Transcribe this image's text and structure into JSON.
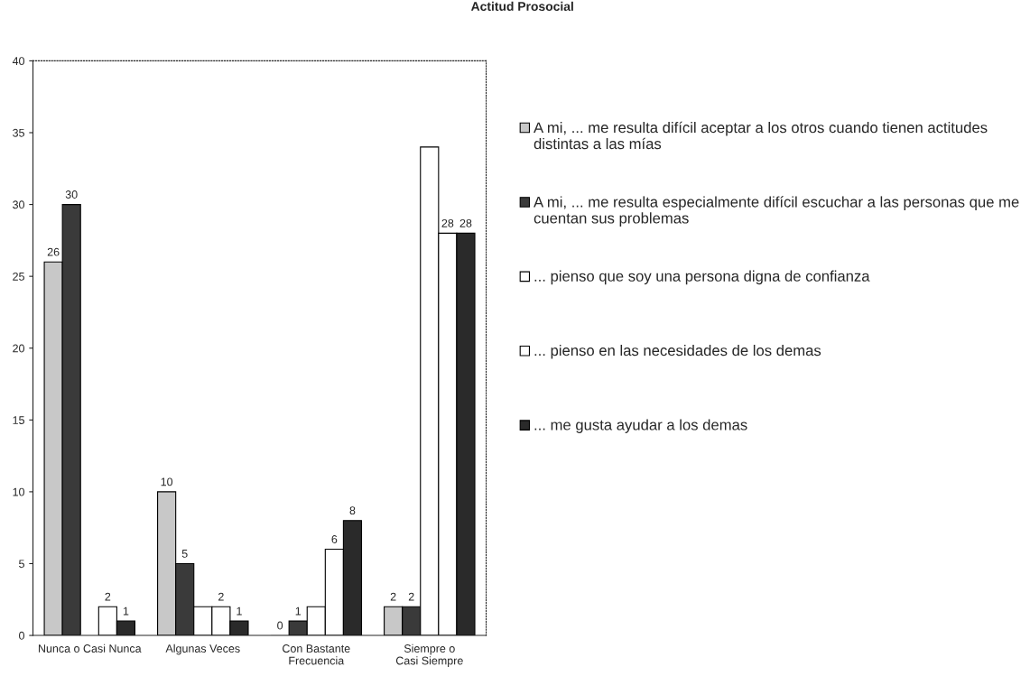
{
  "chart_data": {
    "type": "bar",
    "title": "Actitud Prosocial",
    "categories": [
      "Nunca o Casi Nunca",
      "Algunas Veces",
      "Con Bastante Frecuencia",
      "Siempre o Casi Siempre"
    ],
    "series": [
      {
        "name": "A mi, ... me resulta difícil aceptar a los otros cuando tienen actitudes distintas a las mías",
        "color": "#c8c8c8",
        "values": [
          26,
          10,
          0,
          2
        ],
        "value_labels": [
          "26",
          "10",
          "0",
          "2"
        ]
      },
      {
        "name": "A mi, ... me resulta especialmente difícil escuchar a las personas que me cuentan sus problemas",
        "color": "#3a3a3a",
        "values": [
          30,
          5,
          1,
          2
        ],
        "value_labels": [
          "30",
          "5",
          "1",
          "2"
        ]
      },
      {
        "name": "... pienso que soy una persona digna de confianza",
        "color": "#ffffff",
        "values": [
          0,
          2,
          2,
          34
        ],
        "value_labels": [
          null,
          null,
          null,
          null
        ]
      },
      {
        "name": "... pienso en las necesidades de los demas",
        "color": "#ffffff",
        "values": [
          2,
          2,
          6,
          28
        ],
        "value_labels": [
          "2",
          "2",
          "6",
          "28"
        ]
      },
      {
        "name": "... me gusta ayudar a los demas",
        "color": "#2a2a2a",
        "values": [
          1,
          1,
          8,
          28
        ],
        "value_labels": [
          "1",
          "1",
          "8",
          "28"
        ]
      }
    ],
    "ylim": [
      0,
      40
    ],
    "yticks": [
      0,
      5,
      10,
      15,
      20,
      25,
      30,
      35,
      40
    ],
    "grid": false,
    "legend": "right"
  }
}
